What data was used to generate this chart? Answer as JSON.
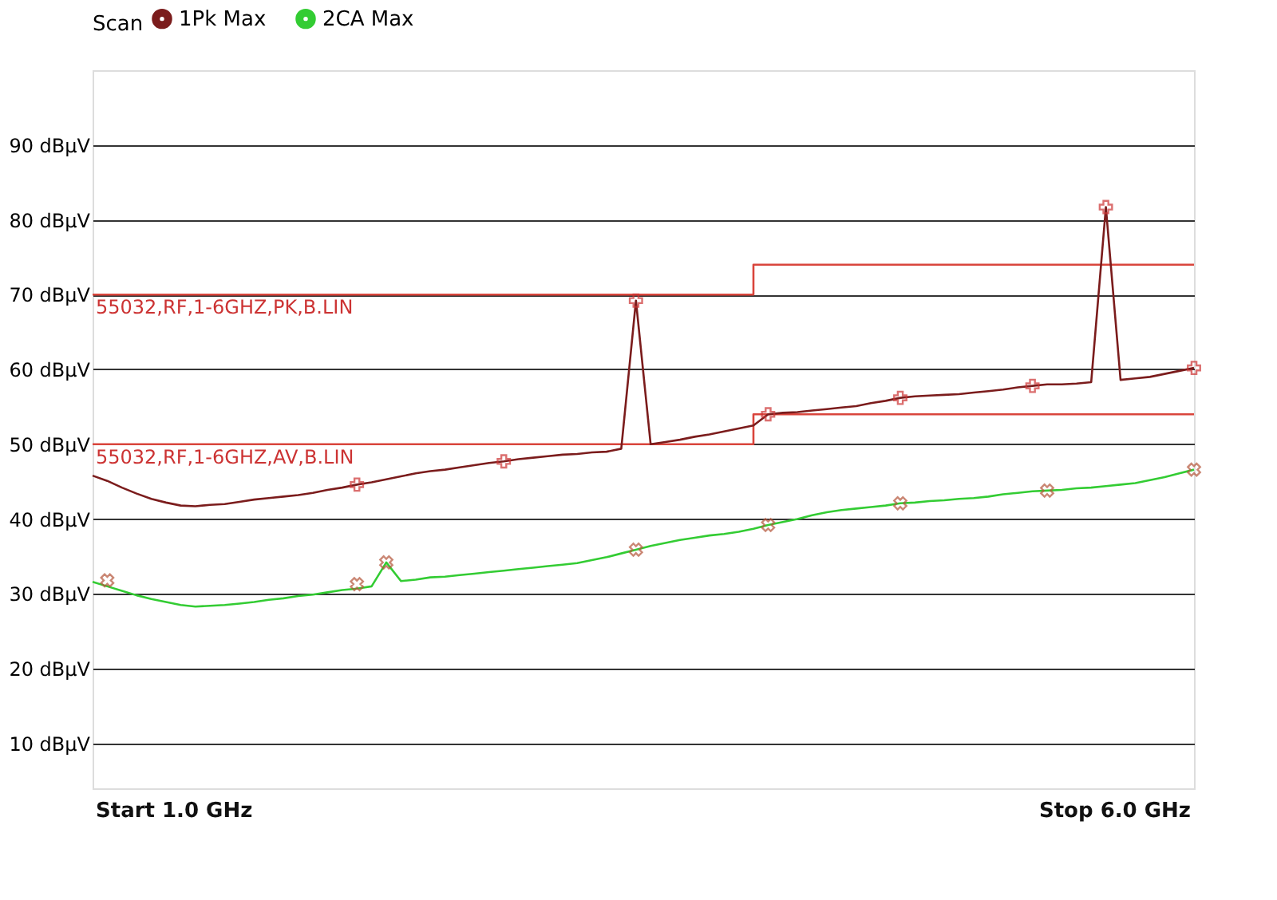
{
  "chart_data": {
    "type": "line",
    "legend_title": "Scan",
    "legend": "top left",
    "grid": "y",
    "tick_labels": "y",
    "categories": [
      null,
      null,
      null,
      null,
      null,
      null,
      null,
      null,
      null,
      null,
      null,
      null,
      null,
      null,
      null,
      null,
      null,
      null,
      null,
      null,
      null,
      null,
      null,
      null,
      null,
      null,
      null,
      null,
      null,
      null,
      null,
      null,
      null,
      null,
      null,
      null,
      null,
      null,
      null,
      null,
      null,
      null,
      null,
      null,
      null,
      null,
      null,
      null,
      null,
      null,
      null,
      null,
      null,
      null,
      null,
      null,
      null,
      null,
      null,
      null,
      null,
      null,
      null,
      null,
      null,
      null,
      null,
      null,
      null,
      null,
      null,
      null,
      null,
      null,
      null,
      null
    ],
    "ylim": [
      4,
      100
    ],
    "yticks": [
      {
        "value": 10,
        "label": "10 dBµV"
      },
      {
        "value": 20,
        "label": "20 dBµV"
      },
      {
        "value": 30,
        "label": "30 dBµV"
      },
      {
        "value": 40,
        "label": "40 dBµV"
      },
      {
        "value": 50,
        "label": "50 dBµV"
      },
      {
        "value": 60,
        "label": "60 dBµV"
      },
      {
        "value": 70,
        "label": "70 dBµV"
      },
      {
        "value": 80,
        "label": "80 dBµV"
      },
      {
        "value": 90,
        "label": "90 dBµV"
      }
    ],
    "annotations": [
      {
        "text": "55032,RF,1-6GHZ,PK,B.LIN",
        "y": 70
      },
      {
        "text": "55032,RF,1-6GHZ,AV,B.LIN",
        "y": 50
      },
      "Start 1.0 GHz",
      "Stop 6.0 GHz"
    ],
    "series": [
      {
        "type": "step",
        "color": "#d9453c",
        "values": [
          70,
          70,
          70,
          70,
          70,
          70,
          70,
          70,
          70,
          70,
          70,
          70,
          70,
          70,
          70,
          70,
          70,
          70,
          70,
          70,
          70,
          70,
          70,
          70,
          70,
          70,
          70,
          70,
          70,
          70,
          70,
          70,
          70,
          70,
          70,
          70,
          70,
          70,
          70,
          70,
          70,
          70,
          70,
          70,
          70,
          70,
          74,
          74,
          74,
          74,
          74,
          74,
          74,
          74,
          74,
          74,
          74,
          74,
          74,
          74,
          74,
          74,
          74,
          74,
          74,
          74,
          74,
          74,
          74,
          74,
          74,
          74,
          74,
          74,
          74,
          74
        ]
      },
      {
        "type": "step",
        "color": "#d9453c",
        "values": [
          50,
          50,
          50,
          50,
          50,
          50,
          50,
          50,
          50,
          50,
          50,
          50,
          50,
          50,
          50,
          50,
          50,
          50,
          50,
          50,
          50,
          50,
          50,
          50,
          50,
          50,
          50,
          50,
          50,
          50,
          50,
          50,
          50,
          50,
          50,
          50,
          50,
          50,
          50,
          50,
          50,
          50,
          50,
          50,
          50,
          50,
          54,
          54,
          54,
          54,
          54,
          54,
          54,
          54,
          54,
          54,
          54,
          54,
          54,
          54,
          54,
          54,
          54,
          54,
          54,
          54,
          54,
          54,
          54,
          54,
          54,
          54,
          54,
          54,
          54,
          54
        ]
      },
      {
        "name": "1Pk Max",
        "color": "#7b1c1c",
        "values": [
          45.8,
          45.1,
          44.2,
          43.4,
          42.7,
          42.2,
          41.8,
          41.7,
          41.9,
          42.0,
          42.3,
          42.6,
          42.8,
          43.0,
          43.2,
          43.5,
          43.9,
          44.2,
          44.6,
          44.9,
          45.3,
          45.7,
          46.1,
          46.4,
          46.6,
          46.9,
          47.2,
          47.5,
          47.7,
          48.0,
          48.2,
          48.4,
          48.6,
          48.7,
          48.9,
          49.0,
          49.4,
          69.2,
          50.0,
          50.3,
          50.6,
          51.0,
          51.3,
          51.7,
          52.1,
          52.5,
          54.0,
          54.2,
          54.3,
          54.5,
          54.7,
          54.9,
          55.1,
          55.5,
          55.8,
          56.2,
          56.4,
          56.5,
          56.6,
          56.7,
          56.9,
          57.1,
          57.3,
          57.6,
          57.8,
          58.0,
          58.0,
          58.1,
          58.3,
          81.7,
          58.6,
          58.8,
          59.0,
          59.4,
          59.8,
          60.2
        ]
      },
      {
        "name": "2CA Max",
        "color": "#33cc33",
        "values": [
          31.6,
          31.0,
          30.4,
          29.8,
          29.3,
          28.9,
          28.5,
          28.3,
          28.4,
          28.5,
          28.7,
          28.9,
          29.2,
          29.4,
          29.7,
          29.9,
          30.2,
          30.5,
          30.7,
          31.0,
          34.2,
          31.7,
          31.9,
          32.2,
          32.3,
          32.5,
          32.7,
          32.9,
          33.1,
          33.3,
          33.5,
          33.7,
          33.9,
          34.1,
          34.5,
          34.9,
          35.4,
          35.9,
          36.4,
          36.8,
          37.2,
          37.5,
          37.8,
          38.0,
          38.3,
          38.7,
          39.2,
          39.6,
          40.0,
          40.5,
          40.9,
          41.2,
          41.4,
          41.6,
          41.8,
          42.1,
          42.2,
          42.4,
          42.5,
          42.7,
          42.8,
          43.0,
          43.3,
          43.5,
          43.7,
          43.8,
          43.9,
          44.1,
          44.2,
          44.4,
          44.6,
          44.8,
          45.2,
          45.6,
          46.1,
          46.6
        ]
      },
      {
        "type": "scatter",
        "marker": "cross",
        "color": "#cc3333",
        "values": [
          null,
          null,
          null,
          null,
          null,
          null,
          null,
          null,
          null,
          null,
          null,
          null,
          null,
          null,
          null,
          null,
          null,
          null,
          44.6,
          null,
          null,
          null,
          null,
          null,
          null,
          null,
          null,
          null,
          47.7,
          null,
          null,
          null,
          null,
          null,
          null,
          null,
          null,
          69.2,
          null,
          null,
          null,
          null,
          null,
          null,
          null,
          null,
          54.0,
          null,
          null,
          null,
          null,
          null,
          null,
          null,
          null,
          56.2,
          null,
          null,
          null,
          null,
          null,
          null,
          null,
          null,
          57.8,
          null,
          null,
          null,
          null,
          81.7,
          null,
          null,
          null,
          null,
          null,
          60.2
        ]
      },
      {
        "type": "scatter",
        "marker": "x",
        "color": "#b5553a",
        "values": [
          null,
          31.8,
          null,
          null,
          null,
          null,
          null,
          null,
          null,
          null,
          null,
          null,
          null,
          null,
          null,
          null,
          null,
          null,
          31.3,
          null,
          34.2,
          null,
          null,
          null,
          null,
          null,
          null,
          null,
          null,
          null,
          null,
          null,
          null,
          null,
          null,
          null,
          null,
          35.9,
          null,
          null,
          null,
          null,
          null,
          null,
          null,
          null,
          39.2,
          null,
          null,
          null,
          null,
          null,
          null,
          null,
          null,
          42.1,
          null,
          null,
          null,
          null,
          null,
          null,
          null,
          null,
          null,
          43.8,
          null,
          null,
          null,
          null,
          null,
          null,
          null,
          null,
          null,
          46.6
        ]
      }
    ]
  }
}
